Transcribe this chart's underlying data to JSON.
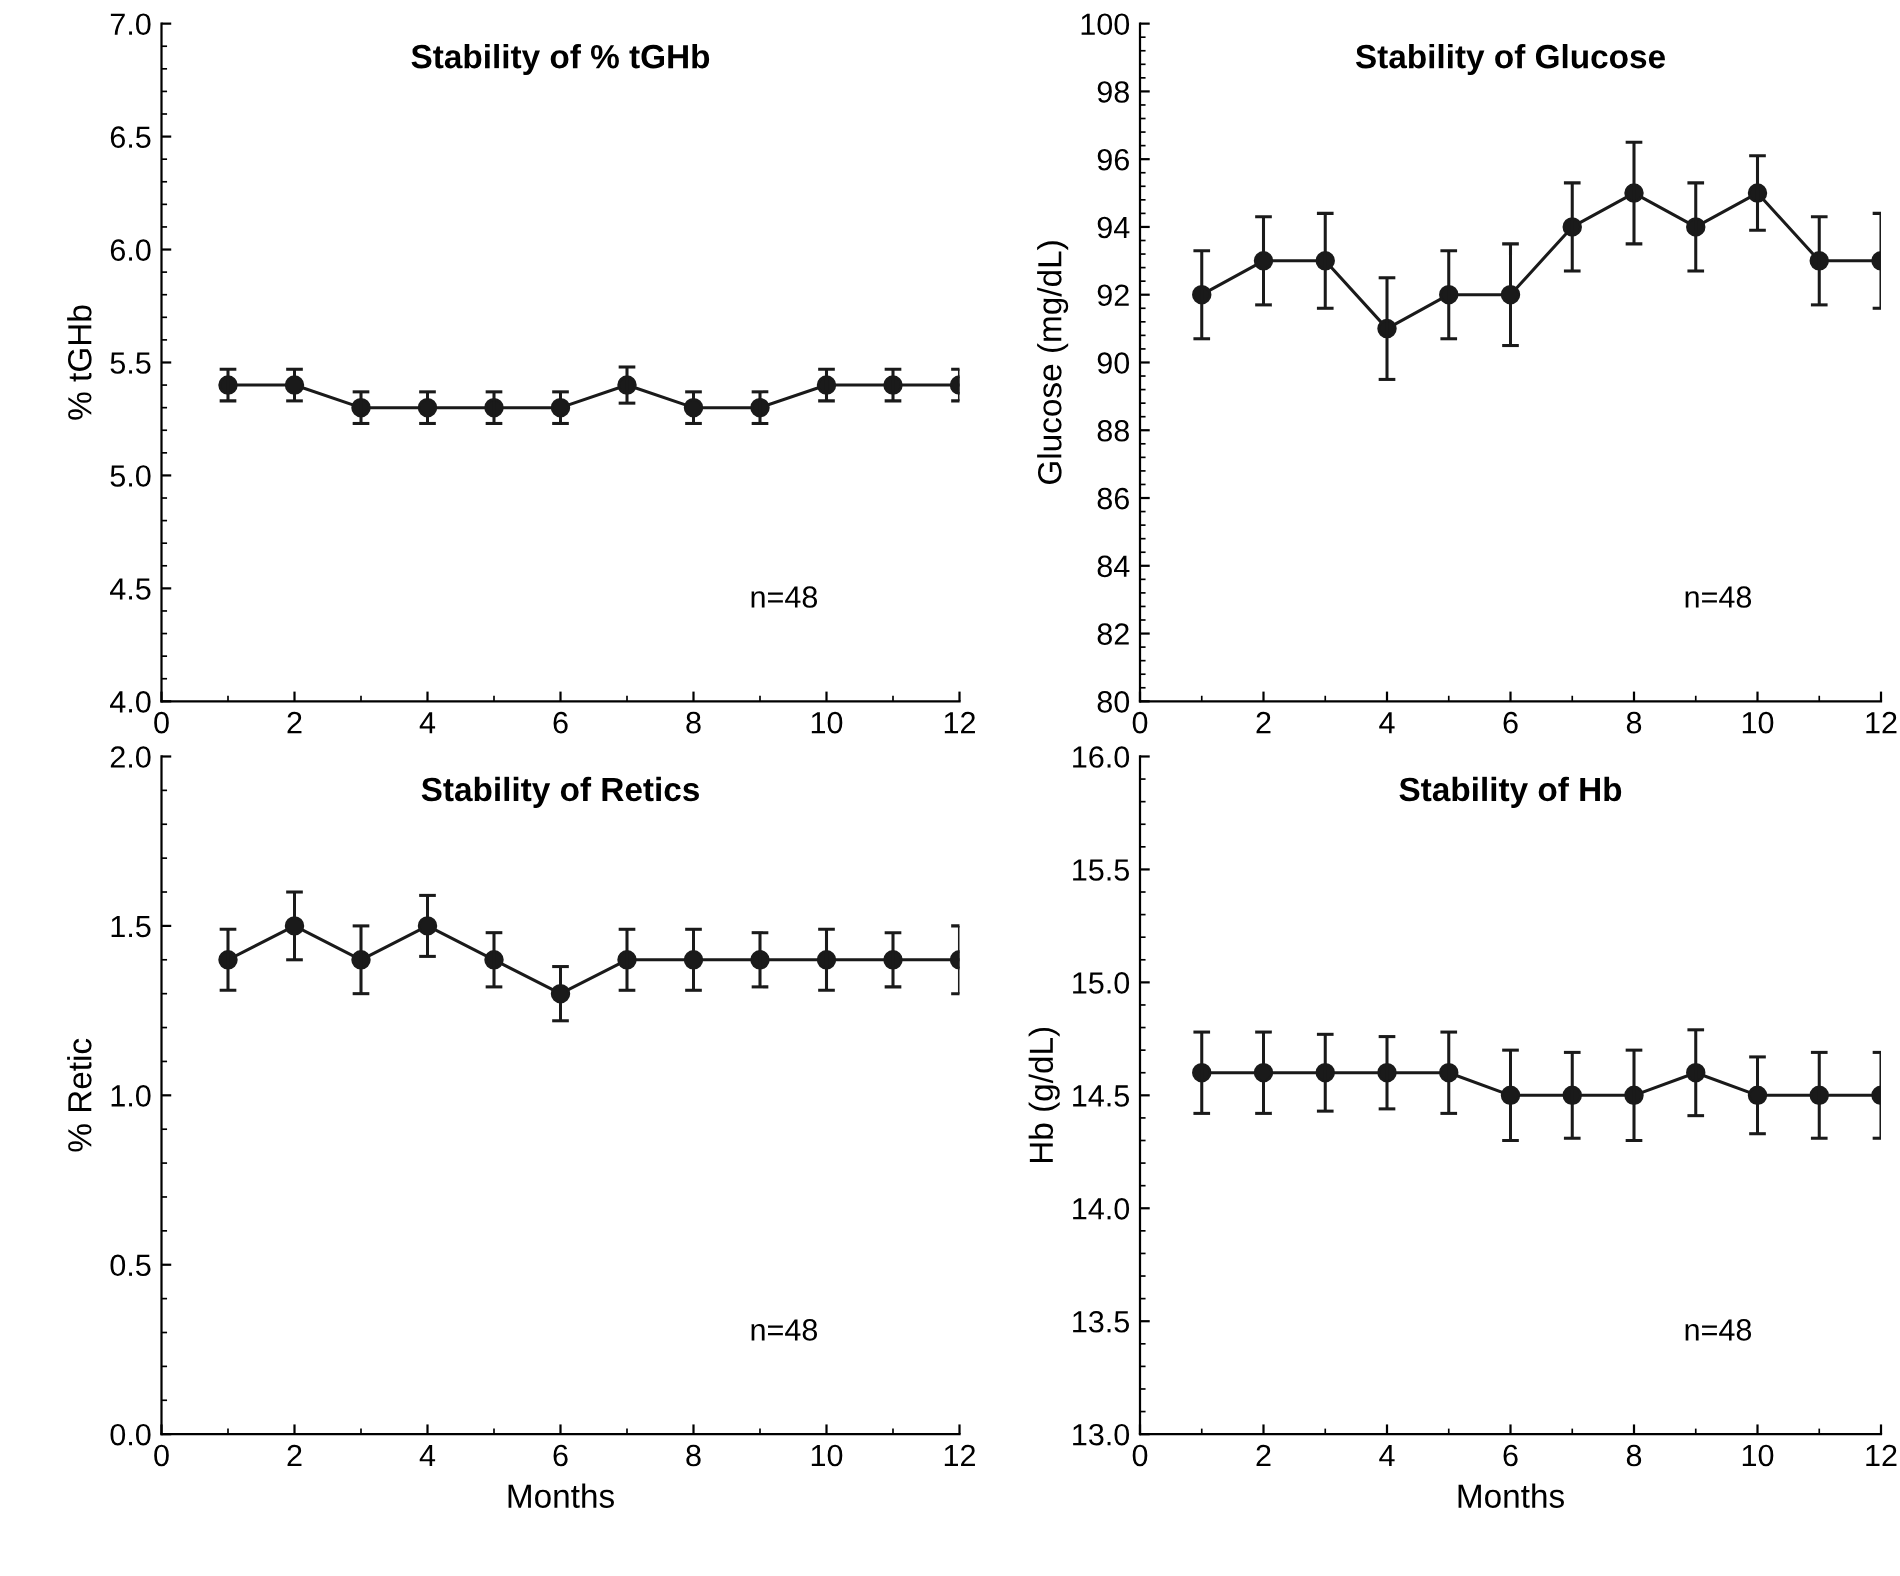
{
  "chart_data": [
    {
      "type": "line",
      "title": "Stability of % tGHb",
      "ylabel": "% tGHb",
      "x": [
        1,
        2,
        3,
        4,
        5,
        6,
        7,
        8,
        9,
        10,
        11,
        12
      ],
      "values": [
        5.4,
        5.4,
        5.3,
        5.3,
        5.3,
        5.3,
        5.4,
        5.3,
        5.3,
        5.4,
        5.4,
        5.4
      ],
      "errors": [
        0.07,
        0.07,
        0.07,
        0.07,
        0.07,
        0.07,
        0.08,
        0.07,
        0.07,
        0.07,
        0.07,
        0.07
      ],
      "color": "#1a1a1a",
      "marker": "circle",
      "xlim": [
        0,
        12
      ],
      "xticks": [
        0,
        2,
        4,
        6,
        8,
        10,
        12
      ],
      "ylim": [
        4.0,
        7.0
      ],
      "yticks": [
        {
          "value": 4.0,
          "label": "4.0"
        },
        {
          "value": 4.5,
          "label": "4.5"
        },
        {
          "value": 5.0,
          "label": "5.0"
        },
        {
          "value": 5.5,
          "label": "5.5"
        },
        {
          "value": 6.0,
          "label": "6.0"
        },
        {
          "value": 6.5,
          "label": "6.5"
        },
        {
          "value": 7.0,
          "label": "7.0"
        }
      ],
      "annotations": [
        "n=48"
      ],
      "grid": false
    },
    {
      "type": "line",
      "title": "Stability of Glucose",
      "ylabel": "Glucose (mg/dL)",
      "x": [
        1,
        2,
        3,
        4,
        5,
        6,
        7,
        8,
        9,
        10,
        11,
        12
      ],
      "values": [
        92,
        93,
        93,
        91,
        92,
        92,
        94,
        95,
        94,
        95,
        93,
        93
      ],
      "errors": [
        1.3,
        1.3,
        1.4,
        1.5,
        1.3,
        1.5,
        1.3,
        1.5,
        1.3,
        1.1,
        1.3,
        1.4
      ],
      "color": "#1a1a1a",
      "marker": "circle",
      "xlim": [
        0,
        12
      ],
      "xticks": [
        0,
        2,
        4,
        6,
        8,
        10,
        12
      ],
      "ylim": [
        80,
        100
      ],
      "yticks": [
        80,
        82,
        84,
        86,
        88,
        90,
        92,
        94,
        96,
        98,
        100
      ],
      "annotations": [
        "n=48"
      ],
      "grid": false
    },
    {
      "type": "line",
      "title": "Stability of Retics",
      "ylabel": "% Retic",
      "xlabel": "Months",
      "x": [
        1,
        2,
        3,
        4,
        5,
        6,
        7,
        8,
        9,
        10,
        11,
        12
      ],
      "values": [
        1.4,
        1.5,
        1.4,
        1.5,
        1.4,
        1.3,
        1.4,
        1.4,
        1.4,
        1.4,
        1.4,
        1.4
      ],
      "errors": [
        0.09,
        0.1,
        0.1,
        0.09,
        0.08,
        0.08,
        0.09,
        0.09,
        0.08,
        0.09,
        0.08,
        0.1
      ],
      "color": "#1a1a1a",
      "marker": "circle",
      "xlim": [
        0,
        12
      ],
      "xticks": [
        0,
        2,
        4,
        6,
        8,
        10,
        12
      ],
      "ylim": [
        0.0,
        2.0
      ],
      "yticks": [
        {
          "value": 0.0,
          "label": "0.0"
        },
        {
          "value": 0.5,
          "label": "0.5"
        },
        {
          "value": 1.0,
          "label": "1.0"
        },
        {
          "value": 1.5,
          "label": "1.5"
        },
        {
          "value": 2.0,
          "label": "2.0"
        }
      ],
      "annotations": [
        "n=48"
      ],
      "grid": false
    },
    {
      "type": "line",
      "title": "Stability of Hb",
      "ylabel": "Hb (g/dL)",
      "xlabel": "Months",
      "x": [
        1,
        2,
        3,
        4,
        5,
        6,
        7,
        8,
        9,
        10,
        11,
        12
      ],
      "values": [
        14.6,
        14.6,
        14.6,
        14.6,
        14.6,
        14.5,
        14.5,
        14.5,
        14.6,
        14.5,
        14.5,
        14.5
      ],
      "errors": [
        0.18,
        0.18,
        0.17,
        0.16,
        0.18,
        0.2,
        0.19,
        0.2,
        0.19,
        0.17,
        0.19,
        0.19
      ],
      "color": "#1a1a1a",
      "marker": "circle",
      "xlim": [
        0,
        12
      ],
      "xticks": [
        0,
        2,
        4,
        6,
        8,
        10,
        12
      ],
      "ylim": [
        13.0,
        16.0
      ],
      "yticks": [
        {
          "value": 13.0,
          "label": "13.0"
        },
        {
          "value": 13.5,
          "label": "13.5"
        },
        {
          "value": 14.0,
          "label": "14.0"
        },
        {
          "value": 14.5,
          "label": "14.5"
        },
        {
          "value": 15.0,
          "label": "15.0"
        },
        {
          "value": 15.5,
          "label": "15.5"
        },
        {
          "value": 16.0,
          "label": "16.0"
        }
      ],
      "annotations": [
        "n=48"
      ],
      "grid": false
    }
  ]
}
